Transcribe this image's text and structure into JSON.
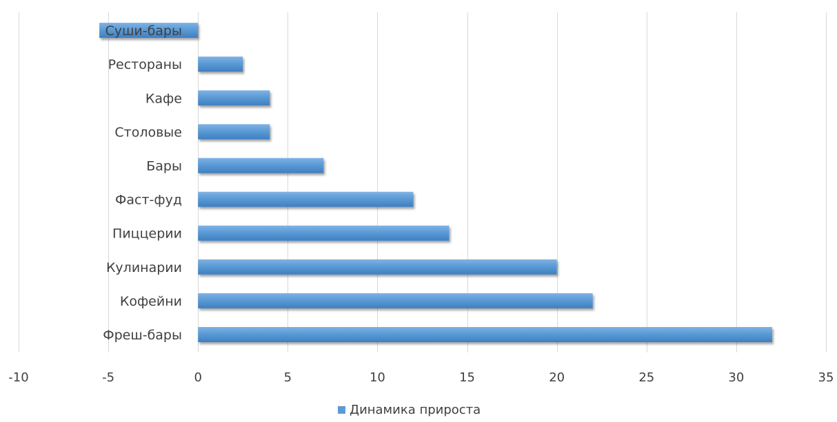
{
  "chart_data": {
    "type": "bar",
    "orientation": "horizontal",
    "categories": [
      "Фреш-бары",
      "Кофейни",
      "Кулинарии",
      "Пиццерии",
      "Фаст-фуд",
      "Бары",
      "Столовые",
      "Кафе",
      "Рестораны",
      "Суши-бары"
    ],
    "series": [
      {
        "name": "Динамика прироста",
        "values": [
          32,
          22,
          20,
          14,
          12,
          7,
          4,
          4,
          2.5,
          -5.5
        ],
        "color": "#5B9BD5"
      }
    ],
    "xlim": [
      -10,
      35
    ],
    "xticks": [
      -10,
      -5,
      0,
      5,
      10,
      15,
      20,
      25,
      30,
      35
    ],
    "grid": "vertical",
    "legend_position": "bottom"
  }
}
